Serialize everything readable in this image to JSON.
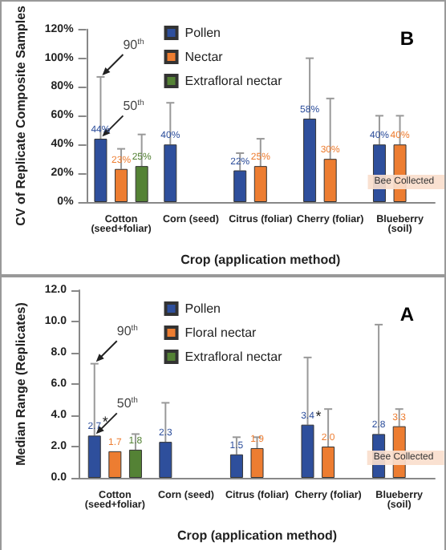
{
  "chart_data": [
    {
      "type": "bar",
      "title": "B",
      "xlabel": "Crop (application method)",
      "ylabel": "CV of Replicate Composite Samples",
      "categories": [
        "Cotton\n(seed+foliar)",
        "Corn (seed)",
        "Citrus (foliar)",
        "Cherry (foliar)",
        "Blueberry\n(soil)"
      ],
      "ylim": [
        0,
        120
      ],
      "yticks": [
        {
          "value": 0,
          "label": "0%"
        },
        {
          "value": 20,
          "label": "20%"
        },
        {
          "value": 40,
          "label": "40%"
        },
        {
          "value": 60,
          "label": "60%"
        },
        {
          "value": 80,
          "label": "80%"
        },
        {
          "value": 100,
          "label": "100%"
        },
        {
          "value": 120,
          "label": "120%"
        }
      ],
      "legend": "top",
      "series": [
        {
          "name": "Pollen",
          "color": "#2e4f9c",
          "values": [
            44,
            40,
            22,
            58,
            40
          ],
          "value_labels": [
            "44%",
            "40%",
            "22%",
            "58%",
            "40%"
          ],
          "errors": [
            [
              44,
              87
            ],
            [
              40,
              69
            ],
            [
              22,
              34
            ],
            [
              58,
              100
            ],
            [
              40,
              60
            ]
          ]
        },
        {
          "name": "Nectar",
          "color": "#ed7d31",
          "values": [
            23,
            null,
            25,
            30,
            40
          ],
          "value_labels": [
            "23%",
            null,
            "25%",
            "30%",
            "40%"
          ],
          "errors": [
            [
              23,
              37
            ],
            null,
            [
              25,
              44
            ],
            [
              30,
              72
            ],
            [
              40,
              60
            ]
          ]
        },
        {
          "name": "Extrafloral nectar",
          "color": "#548235",
          "values": [
            25,
            null,
            null,
            null,
            null
          ],
          "value_labels": [
            "25%",
            null,
            null,
            null,
            null
          ],
          "errors": [
            [
              25,
              47
            ],
            null,
            null,
            null,
            null
          ]
        }
      ],
      "annotations": [
        "90$^{th}$",
        "50$^{th}$",
        "Bee Collected"
      ]
    },
    {
      "type": "bar",
      "title": "A",
      "xlabel": "Crop (application method)",
      "ylabel": "Median Range (Replicates)",
      "categories": [
        "Cotton\n(seed+foliar)",
        "Corn (seed)",
        "Citrus (foliar)",
        "Cherry (foliar)",
        "Blueberry\n(soil)"
      ],
      "ylim": [
        0,
        12
      ],
      "yticks": [
        {
          "value": 0,
          "label": "0.0"
        },
        {
          "value": 2,
          "label": "2.0"
        },
        {
          "value": 4,
          "label": "4.0"
        },
        {
          "value": 6,
          "label": "6.0"
        },
        {
          "value": 8,
          "label": "8.0"
        },
        {
          "value": 10,
          "label": "10.0"
        },
        {
          "value": 12,
          "label": "12.0"
        }
      ],
      "legend": "top",
      "series": [
        {
          "name": "Pollen",
          "color": "#2e4f9c",
          "values": [
            2.7,
            2.3,
            1.5,
            3.4,
            2.8
          ],
          "value_labels": [
            "2.7",
            "2.3",
            "1.5",
            "3.4",
            "2.8"
          ],
          "errors": [
            [
              2.7,
              7.3
            ],
            [
              2.3,
              4.8
            ],
            [
              1.5,
              2.6
            ],
            [
              3.4,
              7.7
            ],
            [
              2.8,
              9.8
            ]
          ]
        },
        {
          "name": "Floral nectar",
          "color": "#ed7d31",
          "values": [
            1.7,
            null,
            1.9,
            2.0,
            3.3
          ],
          "value_labels": [
            "1.7",
            null,
            "1.9",
            "2.0",
            "3.3"
          ],
          "errors": [
            null,
            null,
            [
              1.9,
              2.6
            ],
            [
              2.0,
              4.4
            ],
            [
              3.3,
              4.4
            ]
          ]
        },
        {
          "name": "Extrafloral nectar",
          "color": "#548235",
          "values": [
            1.8,
            null,
            null,
            null,
            null
          ],
          "value_labels": [
            "1.8",
            null,
            null,
            null,
            null
          ],
          "errors": [
            [
              1.8,
              2.8
            ],
            null,
            null,
            null,
            null
          ]
        }
      ],
      "annotations": [
        "90$^{th}$",
        "50$^{th}$",
        "*",
        "*",
        "Bee Collected"
      ]
    }
  ]
}
